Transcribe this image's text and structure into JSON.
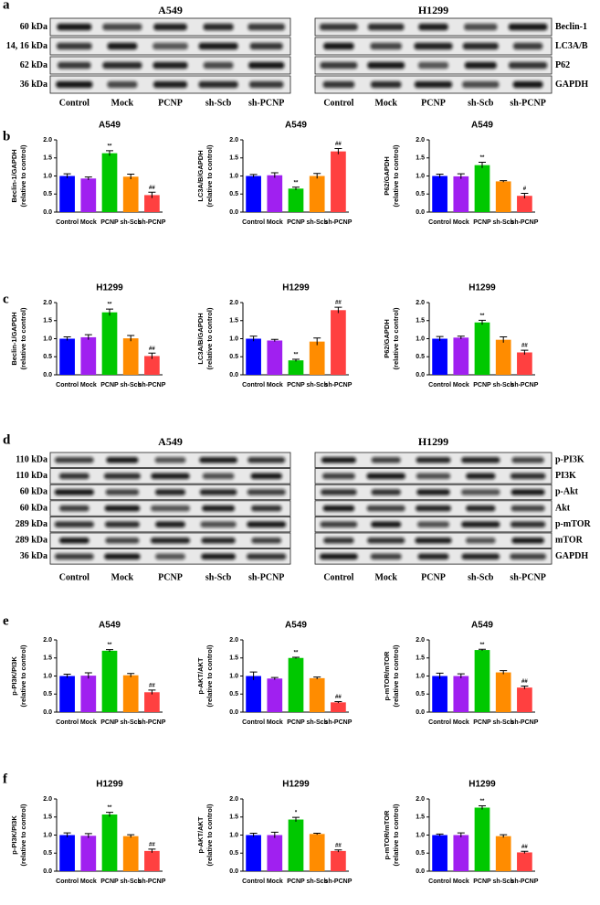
{
  "panel_labels": [
    "a",
    "b",
    "c",
    "d",
    "e",
    "f"
  ],
  "blots": [
    {
      "title": "A549",
      "row_labels": [
        "60 kDa",
        "14, 16 kDa",
        "62 kDa",
        "36 kDa"
      ],
      "lanes": [
        "Control",
        "Mock",
        "PCNP",
        "sh-Scb",
        "sh-PCNP"
      ]
    },
    {
      "title": "H1299",
      "row_labels": [
        "Beclin-1",
        "LC3A/B",
        "P62",
        "GAPDH"
      ],
      "lanes": [
        "Control",
        "Mock",
        "PCNP",
        "sh-Scb",
        "sh-PCNP"
      ]
    },
    {
      "title": "A549",
      "row_labels": [
        "110 kDa",
        "110 kDa",
        "60 kDa",
        "60 kDa",
        "289 kDa",
        "289 kDa",
        "36 kDa"
      ],
      "lanes": [
        "Control",
        "Mock",
        "PCNP",
        "sh-Scb",
        "sh-PCNP"
      ]
    },
    {
      "title": "H1299",
      "row_labels": [
        "p-PI3K",
        "PI3K",
        "p-Akt",
        "Akt",
        "p-mTOR",
        "mTOR",
        "GAPDH"
      ],
      "lanes": [
        "Control",
        "Mock",
        "PCNP",
        "sh-Scb",
        "sh-PCNP"
      ]
    }
  ],
  "chart_data": [
    {
      "type": "bar",
      "title": "A549",
      "ylabel": [
        "Beclin-1/GAPDH",
        "(relative to control)"
      ],
      "categories": [
        "Control",
        "Mock",
        "PCNP",
        "sh-Scb",
        "sh-PCNP"
      ],
      "values": [
        1.0,
        0.93,
        1.63,
        0.98,
        0.47
      ],
      "errors": [
        0.06,
        0.04,
        0.07,
        0.07,
        0.08
      ],
      "annotations": [
        null,
        null,
        "**",
        null,
        "##"
      ],
      "colors": [
        "#0000ff",
        "#a020f0",
        "#00c800",
        "#ff8c00",
        "#ff4040"
      ],
      "ylim": [
        0,
        2
      ],
      "yticks": [
        {
          "value": 0,
          "label": "0.0"
        },
        0.5,
        {
          "value": 1,
          "label": "1.0"
        },
        1.5,
        {
          "value": 2,
          "label": "2.0"
        }
      ]
    },
    {
      "type": "bar",
      "title": "A549",
      "ylabel": [
        "LC3A/B/GAPDH",
        "(relative to control)"
      ],
      "categories": [
        "Control",
        "Mock",
        "PCNP",
        "sh-Scb",
        "sh-PCNP"
      ],
      "values": [
        1.0,
        1.02,
        0.65,
        1.0,
        1.68
      ],
      "errors": [
        0.04,
        0.07,
        0.04,
        0.07,
        0.08
      ],
      "annotations": [
        null,
        null,
        "**",
        null,
        "##"
      ],
      "colors": [
        "#0000ff",
        "#a020f0",
        "#00c800",
        "#ff8c00",
        "#ff4040"
      ],
      "ylim": [
        0,
        2
      ],
      "yticks": [
        {
          "value": 0,
          "label": "0.0"
        },
        0.5,
        {
          "value": 1,
          "label": "1.0"
        },
        1.5,
        {
          "value": 2,
          "label": "2.0"
        }
      ]
    },
    {
      "type": "bar",
      "title": "A549",
      "ylabel": [
        "P62/GAPDH",
        "(relative to control)"
      ],
      "categories": [
        "Control",
        "Mock",
        "PCNP",
        "sh-Scb",
        "sh-PCNP"
      ],
      "values": [
        1.0,
        0.99,
        1.3,
        0.85,
        0.45
      ],
      "errors": [
        0.05,
        0.07,
        0.08,
        0.02,
        0.07
      ],
      "annotations": [
        null,
        null,
        "**",
        null,
        "#"
      ],
      "colors": [
        "#0000ff",
        "#a020f0",
        "#00c800",
        "#ff8c00",
        "#ff4040"
      ],
      "ylim": [
        0,
        2
      ],
      "yticks": [
        {
          "value": 0,
          "label": "0.0"
        },
        0.5,
        {
          "value": 1,
          "label": "1.0"
        },
        1.5,
        {
          "value": 2,
          "label": "2.0"
        }
      ]
    },
    {
      "type": "bar",
      "title": "H1299",
      "ylabel": [
        "Beclin-1/GAPDH",
        "(relative to control)"
      ],
      "categories": [
        "Control",
        "Mock",
        "PCNP",
        "sh-Scb",
        "sh-PCNP"
      ],
      "values": [
        1.0,
        1.04,
        1.73,
        1.01,
        0.52
      ],
      "errors": [
        0.05,
        0.07,
        0.09,
        0.08,
        0.08
      ],
      "annotations": [
        null,
        null,
        "**",
        null,
        "##"
      ],
      "colors": [
        "#0000ff",
        "#a020f0",
        "#00c800",
        "#ff8c00",
        "#ff4040"
      ],
      "ylim": [
        0,
        2
      ],
      "yticks": [
        {
          "value": 0,
          "label": "0.0"
        },
        0.5,
        {
          "value": 1,
          "label": "1.0"
        },
        1.5,
        {
          "value": 2,
          "label": "2.0"
        }
      ]
    },
    {
      "type": "bar",
      "title": "H1299",
      "ylabel": [
        "LC3A/B/GAPDH",
        "(relative to control)"
      ],
      "categories": [
        "Control",
        "Mock",
        "PCNP",
        "sh-Scb",
        "sh-PCNP"
      ],
      "values": [
        1.0,
        0.95,
        0.4,
        0.92,
        1.79
      ],
      "errors": [
        0.07,
        0.03,
        0.03,
        0.1,
        0.08
      ],
      "annotations": [
        null,
        null,
        "**",
        null,
        "##"
      ],
      "colors": [
        "#0000ff",
        "#a020f0",
        "#00c800",
        "#ff8c00",
        "#ff4040"
      ],
      "ylim": [
        0,
        2
      ],
      "yticks": [
        {
          "value": 0,
          "label": "0.0"
        },
        0.5,
        {
          "value": 1,
          "label": "1.0"
        },
        1.5,
        {
          "value": 2,
          "label": "2.0"
        }
      ]
    },
    {
      "type": "bar",
      "title": "H1299",
      "ylabel": [
        "P62/GAPDH",
        "(relative to control)"
      ],
      "categories": [
        "Control",
        "Mock",
        "PCNP",
        "sh-Scb",
        "sh-PCNP"
      ],
      "values": [
        1.0,
        1.03,
        1.45,
        0.97,
        0.62
      ],
      "errors": [
        0.06,
        0.04,
        0.06,
        0.08,
        0.06
      ],
      "annotations": [
        null,
        null,
        "**",
        null,
        "##"
      ],
      "colors": [
        "#0000ff",
        "#a020f0",
        "#00c800",
        "#ff8c00",
        "#ff4040"
      ],
      "ylim": [
        0,
        2
      ],
      "yticks": [
        {
          "value": 0,
          "label": "0.0"
        },
        0.5,
        {
          "value": 1,
          "label": "1.0"
        },
        1.5,
        {
          "value": 2,
          "label": "2.0"
        }
      ]
    },
    {
      "type": "bar",
      "title": "A549",
      "ylabel": [
        "p-PI3K/PI3K",
        "(relative to control)"
      ],
      "categories": [
        "Control",
        "Mock",
        "PCNP",
        "sh-Scb",
        "sh-PCNP"
      ],
      "values": [
        1.0,
        1.01,
        1.7,
        1.02,
        0.55
      ],
      "errors": [
        0.05,
        0.08,
        0.03,
        0.05,
        0.06
      ],
      "annotations": [
        null,
        null,
        "**",
        null,
        "##"
      ],
      "colors": [
        "#0000ff",
        "#a020f0",
        "#00c800",
        "#ff8c00",
        "#ff4040"
      ],
      "ylim": [
        0,
        2
      ],
      "yticks": [
        {
          "value": 0,
          "label": "0.0"
        },
        0.5,
        {
          "value": 1,
          "label": "1.0"
        },
        1.5,
        {
          "value": 2,
          "label": "2.0"
        }
      ]
    },
    {
      "type": "bar",
      "title": "A549",
      "ylabel": [
        "p-AKT/AKT",
        "(relative to control)"
      ],
      "categories": [
        "Control",
        "Mock",
        "PCNP",
        "sh-Scb",
        "sh-PCNP"
      ],
      "values": [
        1.0,
        0.93,
        1.5,
        0.94,
        0.27
      ],
      "errors": [
        0.11,
        0.03,
        0.02,
        0.03,
        0.02
      ],
      "annotations": [
        null,
        null,
        "**",
        null,
        "##"
      ],
      "colors": [
        "#0000ff",
        "#a020f0",
        "#00c800",
        "#ff8c00",
        "#ff4040"
      ],
      "ylim": [
        0,
        2
      ],
      "yticks": [
        {
          "value": 0,
          "label": "0.0"
        },
        0.5,
        {
          "value": 1,
          "label": "1.0"
        },
        1.5,
        {
          "value": 2,
          "label": "2.0"
        }
      ]
    },
    {
      "type": "bar",
      "title": "A549",
      "ylabel": [
        "p-mTOR/mTOR",
        "(relative to control)"
      ],
      "categories": [
        "Control",
        "Mock",
        "PCNP",
        "sh-Scb",
        "sh-PCNP"
      ],
      "values": [
        1.0,
        1.0,
        1.72,
        1.1,
        0.68
      ],
      "errors": [
        0.08,
        0.06,
        0.02,
        0.05,
        0.04
      ],
      "annotations": [
        null,
        null,
        "**",
        null,
        "##"
      ],
      "colors": [
        "#0000ff",
        "#a020f0",
        "#00c800",
        "#ff8c00",
        "#ff4040"
      ],
      "ylim": [
        0,
        2
      ],
      "yticks": [
        {
          "value": 0,
          "label": "0.0"
        },
        0.5,
        {
          "value": 1,
          "label": "1.0"
        },
        1.5,
        {
          "value": 2,
          "label": "2.0"
        }
      ]
    },
    {
      "type": "bar",
      "title": "H1299",
      "ylabel": [
        "p-PI3K/PI3K",
        "(relative to control)"
      ],
      "categories": [
        "Control",
        "Mock",
        "PCNP",
        "sh-Scb",
        "sh-PCNP"
      ],
      "values": [
        1.0,
        0.98,
        1.57,
        0.97,
        0.56
      ],
      "errors": [
        0.06,
        0.06,
        0.06,
        0.04,
        0.05
      ],
      "annotations": [
        null,
        null,
        "**",
        null,
        "##"
      ],
      "colors": [
        "#0000ff",
        "#a020f0",
        "#00c800",
        "#ff8c00",
        "#ff4040"
      ],
      "ylim": [
        0,
        2
      ],
      "yticks": [
        {
          "value": 0,
          "label": "0.0"
        },
        0.5,
        {
          "value": 1,
          "label": "1.0"
        },
        1.5,
        {
          "value": 2,
          "label": "2.0"
        }
      ]
    },
    {
      "type": "bar",
      "title": "H1299",
      "ylabel": [
        "p-AKT/AKT",
        "(relative to control)"
      ],
      "categories": [
        "Control",
        "Mock",
        "PCNP",
        "sh-Scb",
        "sh-PCNP"
      ],
      "values": [
        1.0,
        1.0,
        1.43,
        1.03,
        0.56
      ],
      "errors": [
        0.05,
        0.08,
        0.06,
        0.02,
        0.03
      ],
      "annotations": [
        null,
        null,
        "*",
        null,
        "##"
      ],
      "colors": [
        "#0000ff",
        "#a020f0",
        "#00c800",
        "#ff8c00",
        "#ff4040"
      ],
      "ylim": [
        0,
        2
      ],
      "yticks": [
        {
          "value": 0,
          "label": "0.0"
        },
        0.5,
        {
          "value": 1,
          "label": "1.0"
        },
        1.5,
        {
          "value": 2,
          "label": "2.0"
        }
      ]
    },
    {
      "type": "bar",
      "title": "H1299",
      "ylabel": [
        "p-mTOR/mTOR",
        "(relative to control)"
      ],
      "categories": [
        "Control",
        "Mock",
        "PCNP",
        "sh-Scb",
        "sh-PCNP"
      ],
      "values": [
        1.0,
        1.0,
        1.76,
        0.97,
        0.52
      ],
      "errors": [
        0.03,
        0.06,
        0.05,
        0.04,
        0.03
      ],
      "annotations": [
        null,
        null,
        "**",
        null,
        "##"
      ],
      "colors": [
        "#0000ff",
        "#a020f0",
        "#00c800",
        "#ff8c00",
        "#ff4040"
      ],
      "ylim": [
        0,
        2
      ],
      "yticks": [
        {
          "value": 0,
          "label": "0.0"
        },
        0.5,
        {
          "value": 1,
          "label": "1.0"
        },
        1.5,
        {
          "value": 2,
          "label": "2.0"
        }
      ]
    }
  ]
}
